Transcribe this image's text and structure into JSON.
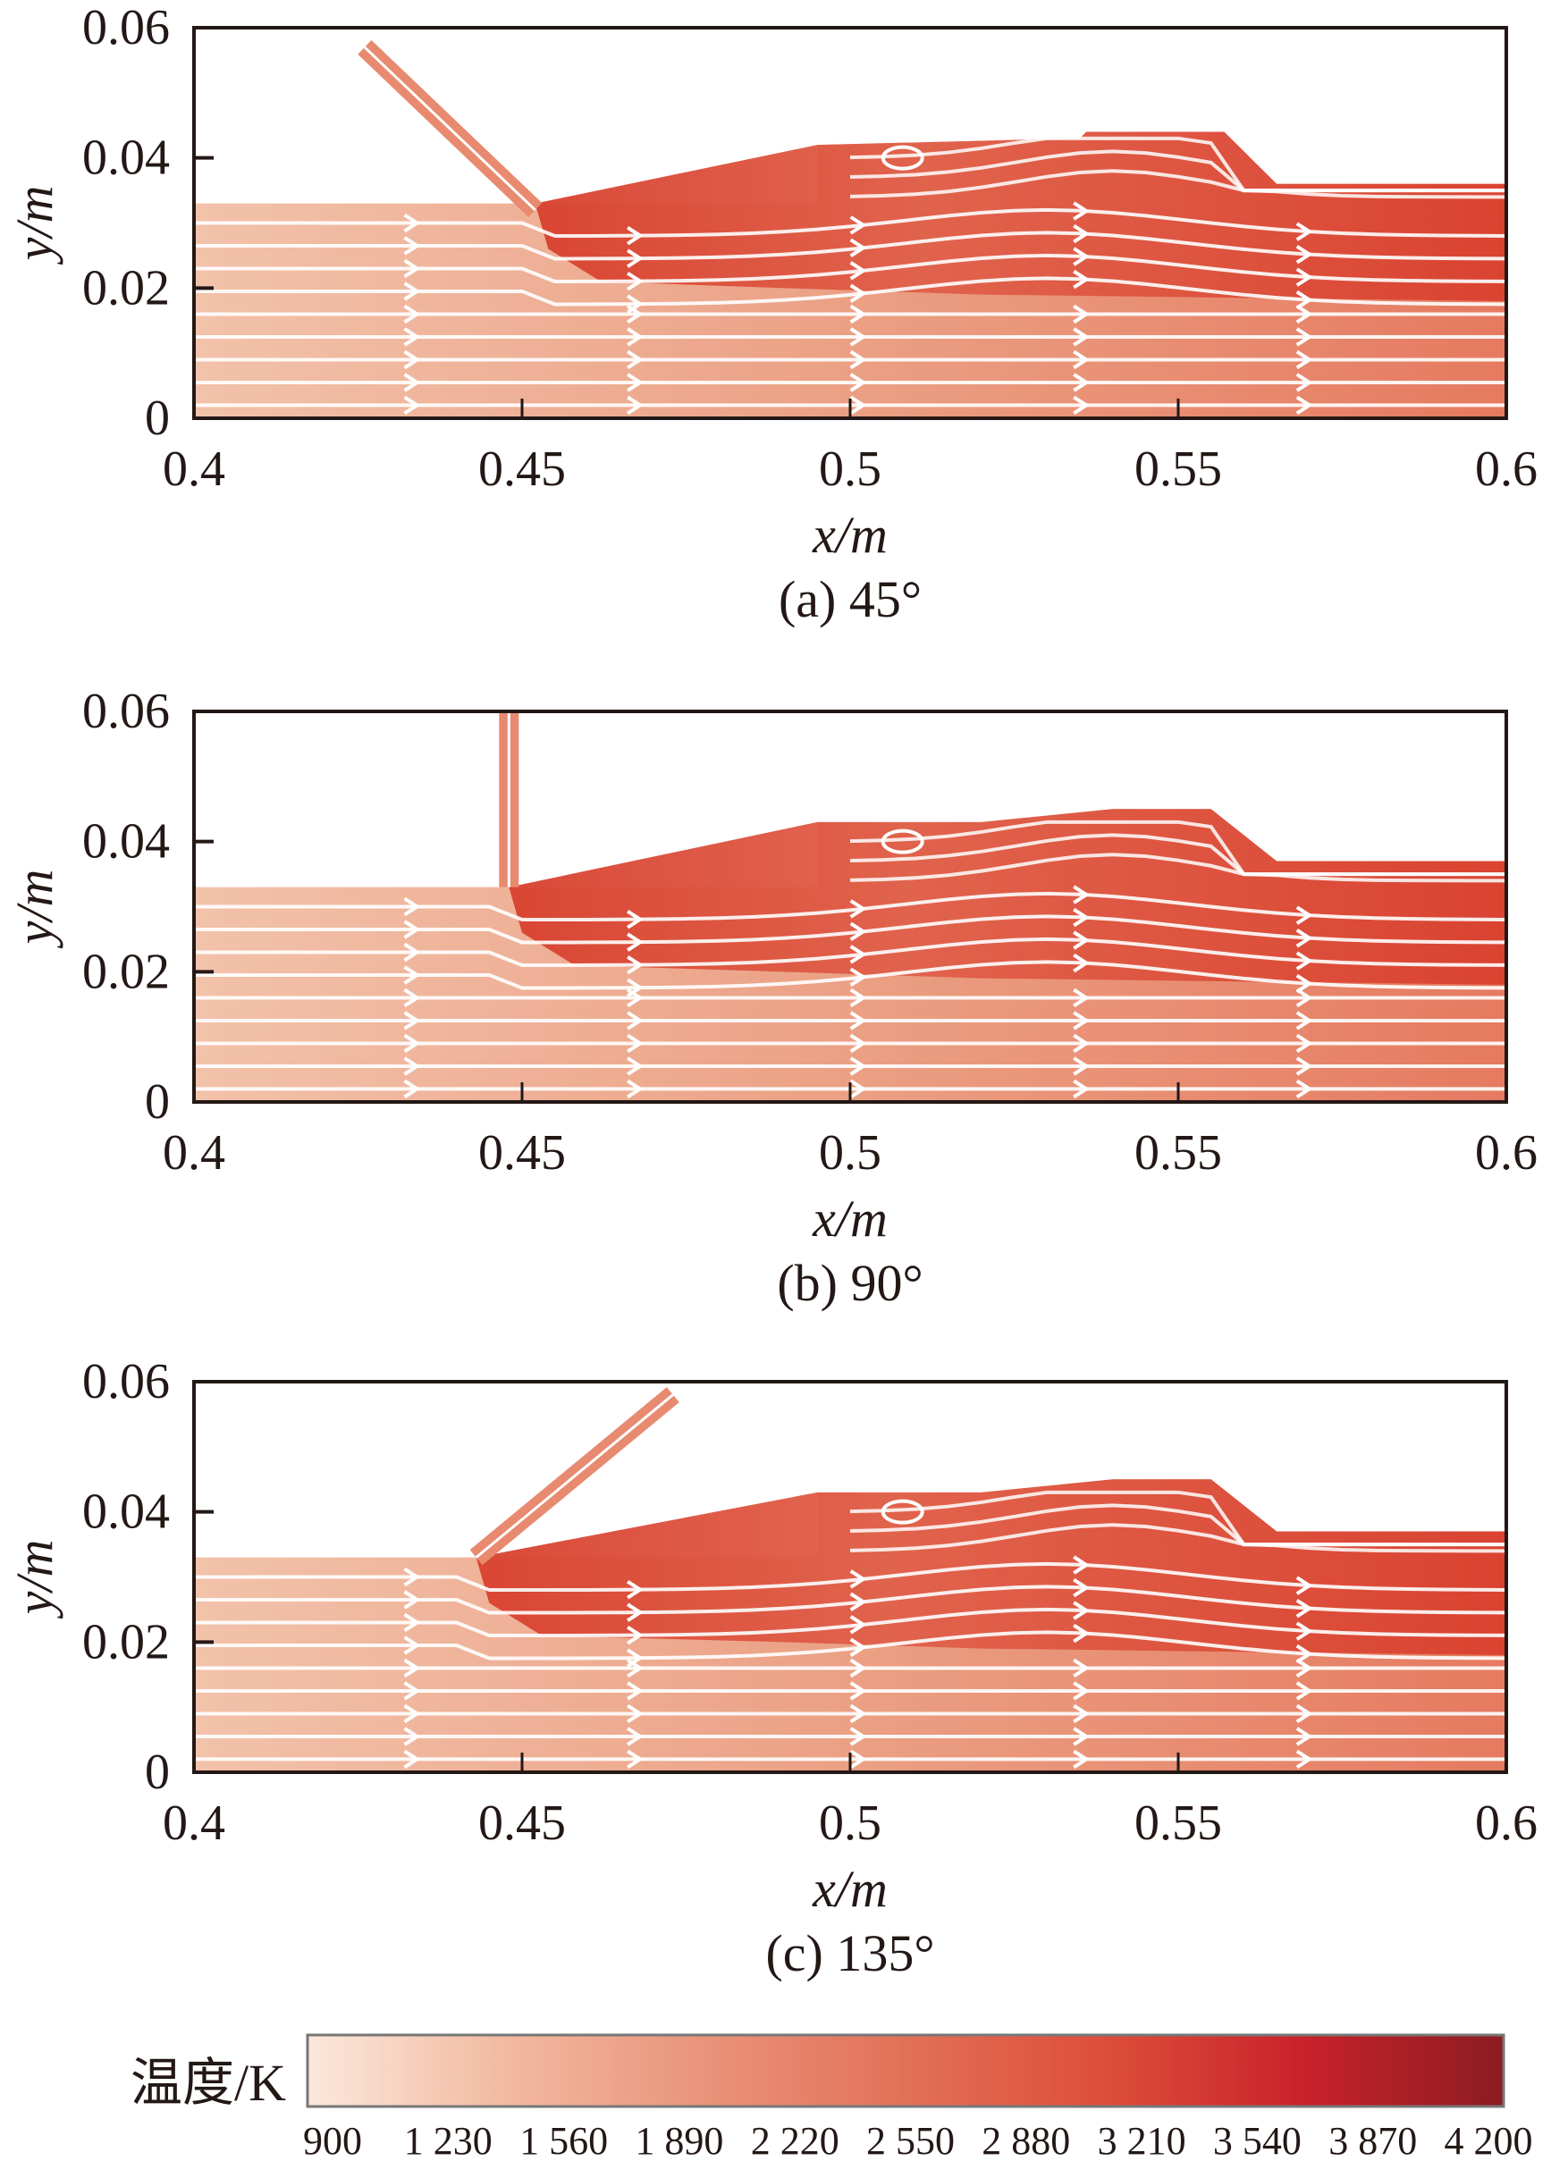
{
  "chart_data": [
    {
      "type": "heatmap",
      "caption": "(a) 45°",
      "injection_angle_deg": 45,
      "xlabel": "x/m",
      "ylabel": "y/m",
      "xlim": [
        0.4,
        0.6
      ],
      "ylim": [
        0,
        0.06
      ],
      "xticks": [
        "0.4",
        "0.45",
        "0.5",
        "0.55",
        "0.6"
      ],
      "yticks": [
        "0",
        "0.02",
        "0.04",
        "0.06"
      ],
      "grid": false,
      "overlay": "white streamlines with arrows"
    },
    {
      "type": "heatmap",
      "caption": "(b) 90°",
      "injection_angle_deg": 90,
      "xlabel": "x/m",
      "ylabel": "y/m",
      "xlim": [
        0.4,
        0.6
      ],
      "ylim": [
        0,
        0.06
      ],
      "xticks": [
        "0.4",
        "0.45",
        "0.5",
        "0.55",
        "0.6"
      ],
      "yticks": [
        "0",
        "0.02",
        "0.04",
        "0.06"
      ],
      "grid": false,
      "overlay": "white streamlines with arrows"
    },
    {
      "type": "heatmap",
      "caption": "(c) 135°",
      "injection_angle_deg": 135,
      "xlabel": "x/m",
      "ylabel": "y/m",
      "xlim": [
        0.4,
        0.6
      ],
      "ylim": [
        0,
        0.06
      ],
      "xticks": [
        "0.4",
        "0.45",
        "0.5",
        "0.55",
        "0.6"
      ],
      "yticks": [
        "0",
        "0.02",
        "0.04",
        "0.06"
      ],
      "grid": false,
      "overlay": "white streamlines with arrows"
    }
  ],
  "colorbar": {
    "label": "温度/K",
    "min": 900,
    "max": 4200,
    "ticks": [
      "900",
      "1 230",
      "1 560",
      "1 890",
      "2 220",
      "2 550",
      "2 880",
      "3 210",
      "3 540",
      "3 870",
      "4 200"
    ],
    "colors": [
      "#fbe8dc",
      "#f2b9a0",
      "#e9937a",
      "#e27058",
      "#dd4e3a",
      "#c8222a",
      "#8c1c22"
    ]
  }
}
